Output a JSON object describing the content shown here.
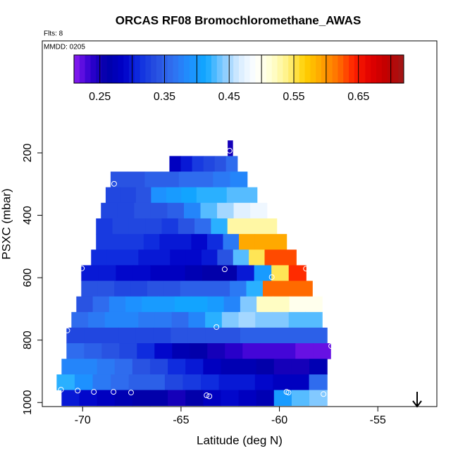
{
  "chart_data": {
    "type": "curtain",
    "title": "ORCAS RF08 Bromochloromethane_AWAS",
    "flights_note": "Flts: 8",
    "date_note": "MMDD: 0205",
    "x_label": "Latitude (deg N)",
    "y_label": "PSXC (mbar)",
    "xlim": [
      -72.05,
      -52.0
    ],
    "xticks": [
      -70,
      -65,
      -60,
      -55
    ],
    "ylim": [
      1013,
      -159
    ],
    "yticks": [
      200,
      400,
      600,
      800,
      1000
    ],
    "colorbar": {
      "range": [
        0.21,
        0.72
      ],
      "ticks": [
        0.25,
        0.35,
        0.45,
        0.55,
        0.65
      ],
      "breaks": [
        0.25,
        0.3,
        0.35,
        0.4,
        0.45,
        0.5,
        0.55,
        0.6,
        0.65,
        0.7
      ],
      "colors": [
        "#8b1cf0",
        "#3000d0",
        "#0000a8",
        "#0000c8",
        "#1030e0",
        "#2850e0",
        "#3070f0",
        "#1e90ff",
        "#10a8ff",
        "#80c8ff",
        "#d8ecff",
        "#ffffff",
        "#ffffd0",
        "#fff080",
        "#ffd000",
        "#ffa500",
        "#ff7000",
        "#ff2000",
        "#e00000",
        "#c00000",
        "#a01818"
      ]
    },
    "rows": [
      {
        "pressure_range": [
          160,
          210
        ],
        "lat_range": [
          -62.63,
          -62.38
        ],
        "values": [
          0.25
        ]
      },
      {
        "pressure_range": [
          210,
          260
        ],
        "lat_range": [
          -65.59,
          -62.14
        ],
        "values": [
          0.28,
          0.3,
          0.32,
          0.33,
          0.34,
          0.36
        ]
      },
      {
        "pressure_range": [
          260,
          310
        ],
        "lat_range": [
          -68.58,
          -61.64
        ],
        "values": [
          0.34,
          0.34,
          0.35,
          0.35,
          0.36,
          0.36,
          0.37,
          0.38
        ]
      },
      {
        "pressure_range": [
          310,
          360
        ],
        "lat_range": [
          -68.83,
          -61.14
        ],
        "values": [
          0.33,
          0.33,
          0.34,
          0.39,
          0.4,
          0.41,
          0.42,
          0.42,
          0.43,
          0.43
        ]
      },
      {
        "pressure_range": [
          360,
          410
        ],
        "lat_range": [
          -69.07,
          -60.64
        ],
        "values": [
          0.33,
          0.33,
          0.34,
          0.34,
          0.35,
          0.38,
          0.43,
          0.45,
          0.47,
          0.48
        ]
      },
      {
        "pressure_range": [
          410,
          460
        ],
        "lat_range": [
          -69.32,
          -60.14
        ],
        "values": [
          0.32,
          0.33,
          0.33,
          0.33,
          0.32,
          0.34,
          0.36,
          0.42,
          0.53,
          0.53,
          0.53
        ]
      },
      {
        "pressure_range": [
          460,
          510
        ],
        "lat_range": [
          -69.32,
          -59.64
        ],
        "values": [
          0.32,
          0.32,
          0.32,
          0.31,
          0.3,
          0.3,
          0.29,
          0.31,
          0.37,
          0.59,
          0.59,
          0.59
        ]
      },
      {
        "pressure_range": [
          510,
          560
        ],
        "lat_range": [
          -69.57,
          -59.15
        ],
        "values": [
          0.31,
          0.31,
          0.31,
          0.3,
          0.3,
          0.29,
          0.29,
          0.3,
          0.34,
          0.43,
          0.55,
          0.63,
          0.63
        ]
      },
      {
        "pressure_range": [
          560,
          610
        ],
        "lat_range": [
          -70.07,
          -58.65
        ],
        "values": [
          0.3,
          0.3,
          0.29,
          0.29,
          0.28,
          0.28,
          0.27,
          0.26,
          0.26,
          0.3,
          0.4,
          0.55,
          0.64
        ]
      },
      {
        "pressure_range": [
          610,
          660
        ],
        "lat_range": [
          -70.07,
          -58.33
        ],
        "values": [
          0.34,
          0.34,
          0.33,
          0.33,
          0.34,
          0.34,
          0.35,
          0.35,
          0.35,
          0.37,
          0.42,
          0.62,
          0.62,
          0.62
        ]
      },
      {
        "pressure_range": [
          660,
          710
        ],
        "lat_range": [
          -70.32,
          -57.83
        ],
        "values": [
          0.34,
          0.36,
          0.38,
          0.39,
          0.4,
          0.4,
          0.41,
          0.41,
          0.4,
          0.38,
          0.44,
          0.52,
          0.52,
          0.5,
          0.5
        ]
      },
      {
        "pressure_range": [
          710,
          760
        ],
        "lat_range": [
          -70.57,
          -57.83
        ],
        "values": [
          0.36,
          0.37,
          0.38,
          0.38,
          0.37,
          0.37,
          0.36,
          0.38,
          0.42,
          0.44,
          0.45,
          0.44,
          0.44,
          0.43,
          0.43
        ]
      },
      {
        "pressure_range": [
          760,
          810
        ],
        "lat_range": [
          -70.82,
          -57.58
        ],
        "values": [
          0.33,
          0.33,
          0.33,
          0.33,
          0.33,
          0.33,
          0.34,
          0.34,
          0.34,
          0.34,
          0.35,
          0.35,
          0.35,
          0.35,
          0.35
        ]
      },
      {
        "pressure_range": [
          810,
          860
        ],
        "lat_range": [
          -70.82,
          -57.4
        ],
        "values": [
          0.36,
          0.35,
          0.34,
          0.33,
          0.31,
          0.29,
          0.27,
          0.26,
          0.25,
          0.24,
          0.23,
          0.23,
          0.23,
          0.22,
          0.22
        ]
      },
      {
        "pressure_range": [
          860,
          910
        ],
        "lat_range": [
          -71.07,
          -57.58
        ],
        "values": [
          0.38,
          0.38,
          0.37,
          0.36,
          0.34,
          0.33,
          0.31,
          0.3,
          0.28,
          0.27,
          0.27,
          0.26,
          0.25,
          0.25,
          0.27
        ]
      },
      {
        "pressure_range": [
          910,
          960
        ],
        "lat_range": [
          -71.32,
          -57.58
        ],
        "values": [
          0.42,
          0.39,
          0.37,
          0.36,
          0.35,
          0.35,
          0.33,
          0.32,
          0.31,
          0.3,
          0.3,
          0.29,
          0.28,
          0.28,
          0.36
        ]
      },
      {
        "pressure_range": [
          960,
          1010
        ],
        "lat_range": [
          -71.07,
          -57.58
        ],
        "values": [
          0.3,
          0.29,
          0.28,
          0.27,
          0.26,
          0.26,
          0.25,
          0.26,
          0.28,
          0.29,
          0.28,
          0.27,
          0.4,
          0.43,
          0.44
        ]
      }
    ],
    "samples": {
      "lat": [
        -62.53,
        -68.4,
        -70.04,
        -62.78,
        -60.39,
        -58.65,
        -70.78,
        -63.2,
        -57.37,
        -71.1,
        -70.25,
        -69.43,
        -68.43,
        -67.54,
        -63.7,
        -63.56,
        -59.64,
        -59.54,
        -57.76
      ],
      "pressure": [
        193,
        299,
        570,
        573,
        598,
        571,
        769,
        758,
        819,
        959,
        962,
        966,
        966,
        968,
        977,
        980,
        966,
        968,
        973
      ]
    }
  }
}
